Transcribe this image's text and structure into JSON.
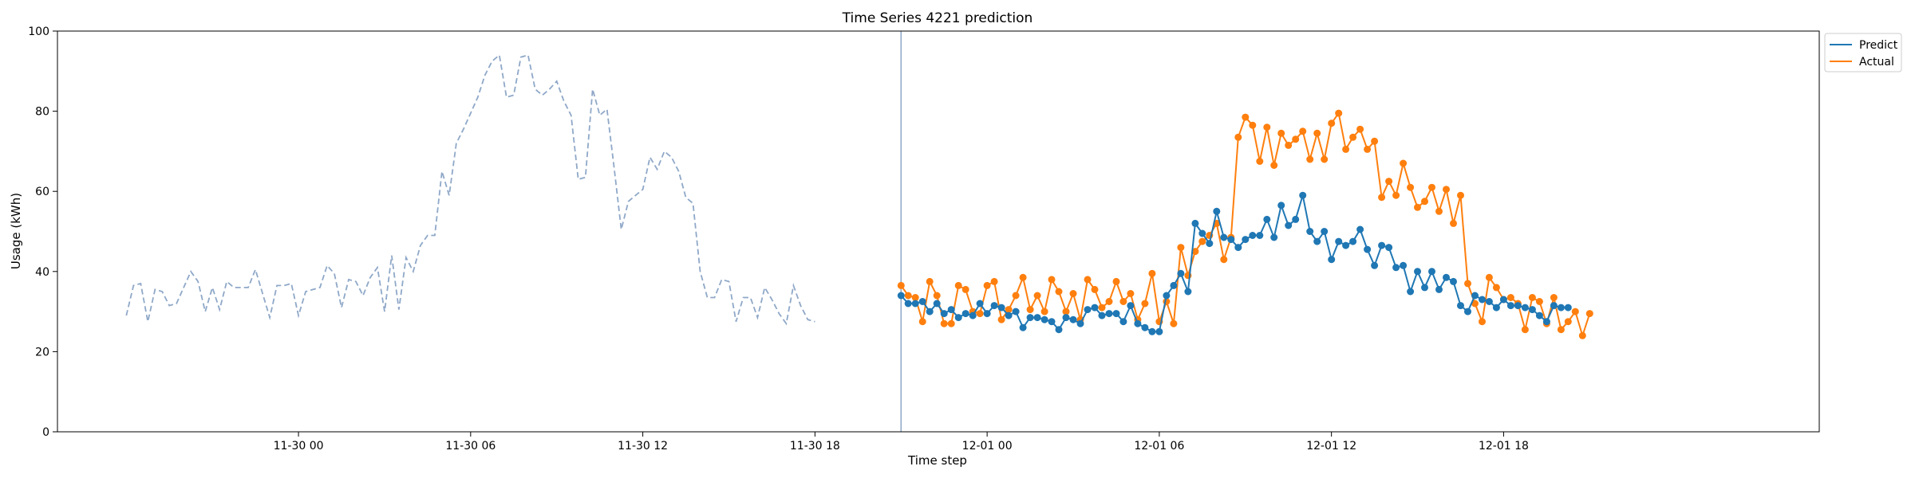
{
  "chart_data": {
    "type": "line",
    "title": "Time Series 4221 prediction",
    "xlabel": "Time step",
    "ylabel": "Usage (kWh)",
    "ylim": [
      0,
      100
    ],
    "xlim": [
      "2023-11-29 15:36",
      "2023-12-02 05:00"
    ],
    "x_ticks": [
      {
        "t": "2023-11-30 00:00",
        "label": "11-30 00"
      },
      {
        "t": "2023-11-30 06:00",
        "label": "11-30 06"
      },
      {
        "t": "2023-11-30 12:00",
        "label": "11-30 12"
      },
      {
        "t": "2023-11-30 18:00",
        "label": "11-30 18"
      },
      {
        "t": "2023-12-01 00:00",
        "label": "12-01 00"
      },
      {
        "t": "2023-12-01 06:00",
        "label": "12-01 06"
      },
      {
        "t": "2023-12-01 12:00",
        "label": "12-01 12"
      },
      {
        "t": "2023-12-01 18:00",
        "label": "12-01 18"
      }
    ],
    "y_ticks": [
      0,
      20,
      40,
      60,
      80,
      100
    ],
    "grid": false,
    "legend_position": "top-right-outside",
    "split_time": "2023-11-30 21:00",
    "step_minutes": 15,
    "colors": {
      "history": "#8fa8c8",
      "predict": "#1f77b4",
      "actual": "#ff7f0e",
      "split": "#8fa8c8"
    },
    "history": {
      "start": "2023-11-29 18:00",
      "values": [
        29,
        36.5,
        37,
        27.5,
        35.5,
        35,
        31.5,
        32,
        36,
        40,
        37.5,
        30,
        36,
        30.5,
        37.5,
        36,
        36,
        36,
        40.5,
        34.5,
        28.5,
        36.5,
        36.5,
        37,
        29,
        35,
        35.5,
        36,
        41.5,
        39.5,
        31,
        38,
        37.5,
        34,
        38.5,
        41,
        30,
        44,
        30.5,
        43.5,
        40,
        46.5,
        49,
        49,
        65,
        59,
        72,
        75.5,
        79.5,
        83.5,
        89,
        92.5,
        94,
        83.5,
        84,
        93.5,
        94,
        85.5,
        84,
        85.5,
        87.5,
        82.5,
        79,
        63,
        63.5,
        85.5,
        79,
        80.5,
        66,
        50.5,
        57.5,
        59,
        60.5,
        68.5,
        65.5,
        70,
        68.5,
        65,
        58.5,
        57,
        40,
        33.5,
        33.5,
        38,
        37.5,
        27.5,
        33.5,
        33.5,
        28.5,
        36,
        33,
        29.5,
        27,
        36.5,
        31.5,
        28,
        27.5
      ]
    },
    "series": [
      {
        "name": "Predict",
        "start": "2023-11-30 21:00",
        "values": [
          34,
          32,
          32,
          32.5,
          30,
          32,
          29.5,
          30.5,
          28.5,
          29.5,
          29,
          32,
          29.5,
          31.5,
          31,
          29,
          30,
          26,
          28.5,
          28.5,
          28,
          27.5,
          25.5,
          28.5,
          28,
          27,
          30.5,
          31,
          29,
          29.5,
          29.5,
          27.5,
          31.5,
          27,
          26,
          25,
          25,
          34,
          36.5,
          39.5,
          35,
          52,
          49.5,
          47,
          55,
          48.5,
          48,
          46,
          48,
          49,
          49,
          53,
          48.5,
          56.5,
          51.5,
          53,
          59,
          50,
          47.5,
          50,
          43,
          47.5,
          46.5,
          47.5,
          50.5,
          45.5,
          41.5,
          46.5,
          46,
          41,
          41.5,
          35,
          40,
          36,
          40,
          35.5,
          38.5,
          37.5,
          31.5,
          30,
          34,
          33,
          32.5,
          31,
          33,
          31.5,
          31.5,
          31,
          30.5,
          29,
          27.5,
          31.5,
          31,
          31
        ]
      },
      {
        "name": "Actual",
        "start": "2023-11-30 21:00",
        "values": [
          36.5,
          34,
          33.5,
          27.5,
          37.5,
          34,
          27,
          27,
          36.5,
          35.5,
          30,
          29.5,
          36.5,
          37.5,
          28,
          30.5,
          34,
          38.5,
          30.5,
          34,
          30,
          38,
          35,
          30,
          34.5,
          28,
          38,
          35.5,
          31,
          32.5,
          37.5,
          32.5,
          34.5,
          28,
          32,
          39.5,
          27.5,
          32.5,
          27,
          46,
          39,
          45,
          47.5,
          49,
          52,
          43,
          48.5,
          73.5,
          78.5,
          76.5,
          67.5,
          76,
          66.5,
          74.5,
          71.5,
          73,
          75,
          68,
          74.5,
          68,
          77,
          79.5,
          70.5,
          73.5,
          75.5,
          70.5,
          72.5,
          58.5,
          62.5,
          59,
          67,
          61,
          56,
          57.5,
          61,
          55,
          60.5,
          52,
          59,
          37,
          32,
          27.5,
          38.5,
          36,
          33,
          33.5,
          32,
          25.5,
          33.5,
          32.5,
          27,
          33.5,
          25.5,
          27.5,
          30,
          24,
          29.5
        ]
      }
    ]
  }
}
